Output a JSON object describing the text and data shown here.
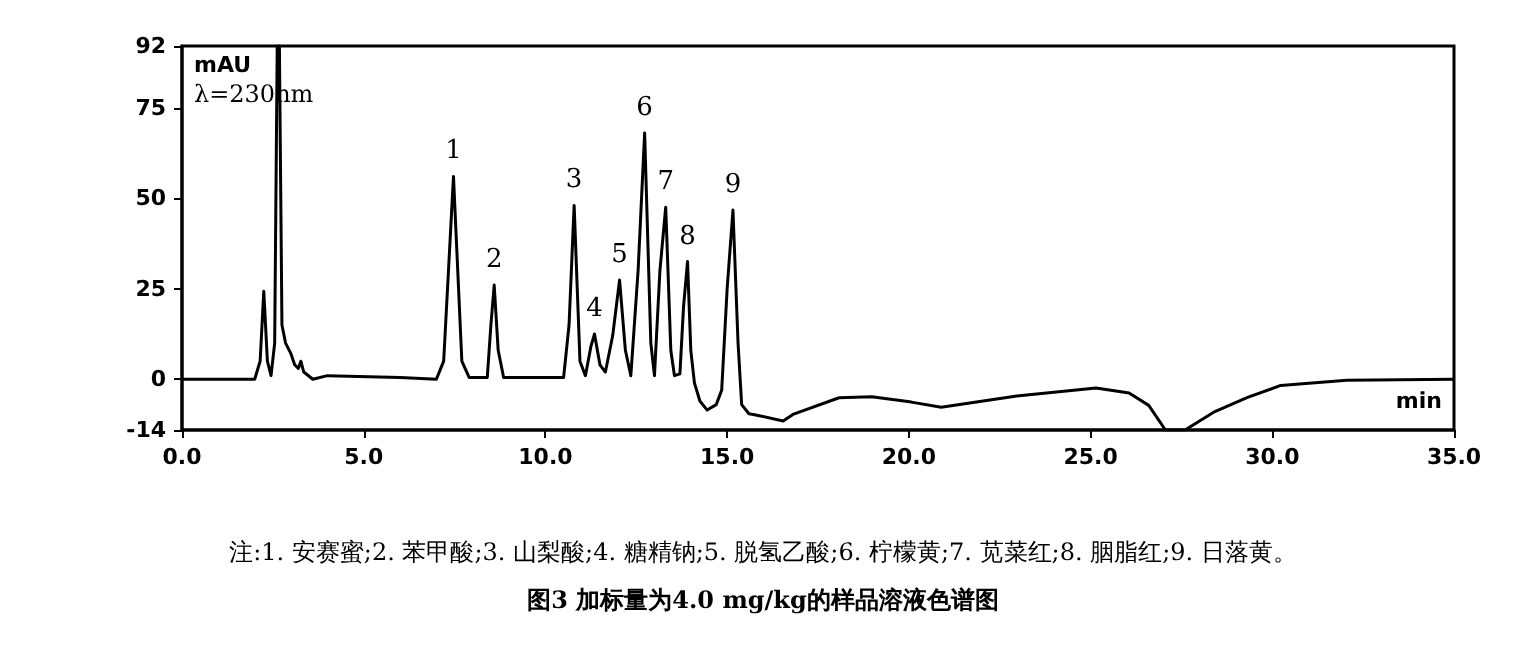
{
  "chart_data": {
    "type": "line",
    "title": "图3 加标量为4.0 mg/kg的样品溶液色谱图",
    "xlabel": "min",
    "ylabel": "mAU",
    "annotations": [
      "λ=230nm",
      "注:1. 安赛蜜;2. 苯甲酸;3. 山梨酸;4. 糖精钠;5. 脱氢乙酸;6. 柠檬黄;7. 苋菜红;8. 胭脂红;9. 日落黄。",
      {
        "text": "1",
        "x": 7.47,
        "y": 56
      },
      {
        "text": "2",
        "x": 8.59,
        "y": 26
      },
      {
        "text": "3",
        "x": 10.79,
        "y": 48
      },
      {
        "text": "4",
        "x": 11.35,
        "y": 12.5
      },
      {
        "text": "5",
        "x": 12.04,
        "y": 27.4
      },
      {
        "text": "6",
        "x": 12.73,
        "y": 68
      },
      {
        "text": "7",
        "x": 13.31,
        "y": 47.5
      },
      {
        "text": "8",
        "x": 13.91,
        "y": 32.5
      },
      {
        "text": "9",
        "x": 15.16,
        "y": 46.7
      }
    ],
    "x": [
      0,
      2.0,
      2.15,
      2.25,
      2.35,
      2.45,
      2.55,
      2.62,
      2.68,
      2.75,
      2.85,
      3.0,
      3.1,
      3.2,
      3.27,
      3.35,
      3.6,
      4.0,
      6.0,
      7.0,
      7.2,
      7.47,
      7.7,
      7.9,
      8.4,
      8.5,
      8.59,
      8.7,
      8.85,
      10.5,
      10.65,
      10.79,
      10.95,
      11.1,
      11.25,
      11.35,
      11.5,
      11.65,
      11.85,
      12.04,
      12.2,
      12.35,
      12.55,
      12.73,
      12.9,
      13.0,
      13.15,
      13.31,
      13.45,
      13.55,
      13.7,
      13.8,
      13.91,
      14.0,
      14.1,
      14.25,
      14.45,
      14.7,
      14.85,
      15.0,
      15.16,
      15.3,
      15.4,
      15.6,
      15.72,
      16.54,
      16.81,
      18.08,
      18.98,
      20.07,
      20.89,
      22.97,
      25.15,
      26.06,
      26.6,
      27.06,
      27.6,
      28.42,
      29.32,
      30.23,
      32.05,
      35
    ],
    "series": [
      {
        "color": "#000000",
        "values": [
          0,
          0,
          5,
          24.3,
          5,
          1,
          10,
          92,
          92,
          15,
          10,
          7,
          4,
          3,
          5,
          2,
          0,
          1,
          0.5,
          0,
          5,
          56,
          5,
          0.5,
          0.5,
          15,
          26,
          8,
          0.5,
          0.5,
          15,
          48,
          5,
          1,
          9,
          12.5,
          4,
          2,
          12,
          27.4,
          8,
          1,
          30,
          68,
          10,
          1,
          30,
          47.5,
          8,
          1,
          1.5,
          20,
          32.5,
          8,
          -1,
          -6,
          -8.5,
          -7,
          -3,
          25,
          46.7,
          10,
          -7,
          -9.5,
          -9.7,
          -11.5,
          -9.7,
          -5.1,
          -4.8,
          -6.3,
          -7.7,
          -4.6,
          -2.4,
          -3.8,
          -7.2,
          -14,
          -14,
          -8.9,
          -5,
          -1.7,
          -0.3,
          0
        ]
      }
    ],
    "xlim": [
      0,
      35
    ],
    "ylim": [
      -14,
      92
    ],
    "xticks": [
      {
        "value": 0,
        "label": "0.0"
      },
      {
        "value": 5,
        "label": "5.0"
      },
      {
        "value": 10,
        "label": "10.0"
      },
      {
        "value": 15,
        "label": "15.0"
      },
      {
        "value": 20,
        "label": "20.0"
      },
      {
        "value": 25,
        "label": "25.0"
      },
      {
        "value": 30,
        "label": "30.0"
      },
      {
        "value": 35,
        "label": "35.0"
      }
    ],
    "yticks": [
      -14,
      0,
      25,
      50,
      75,
      92
    ],
    "marker": "none",
    "line_style": "solid"
  }
}
